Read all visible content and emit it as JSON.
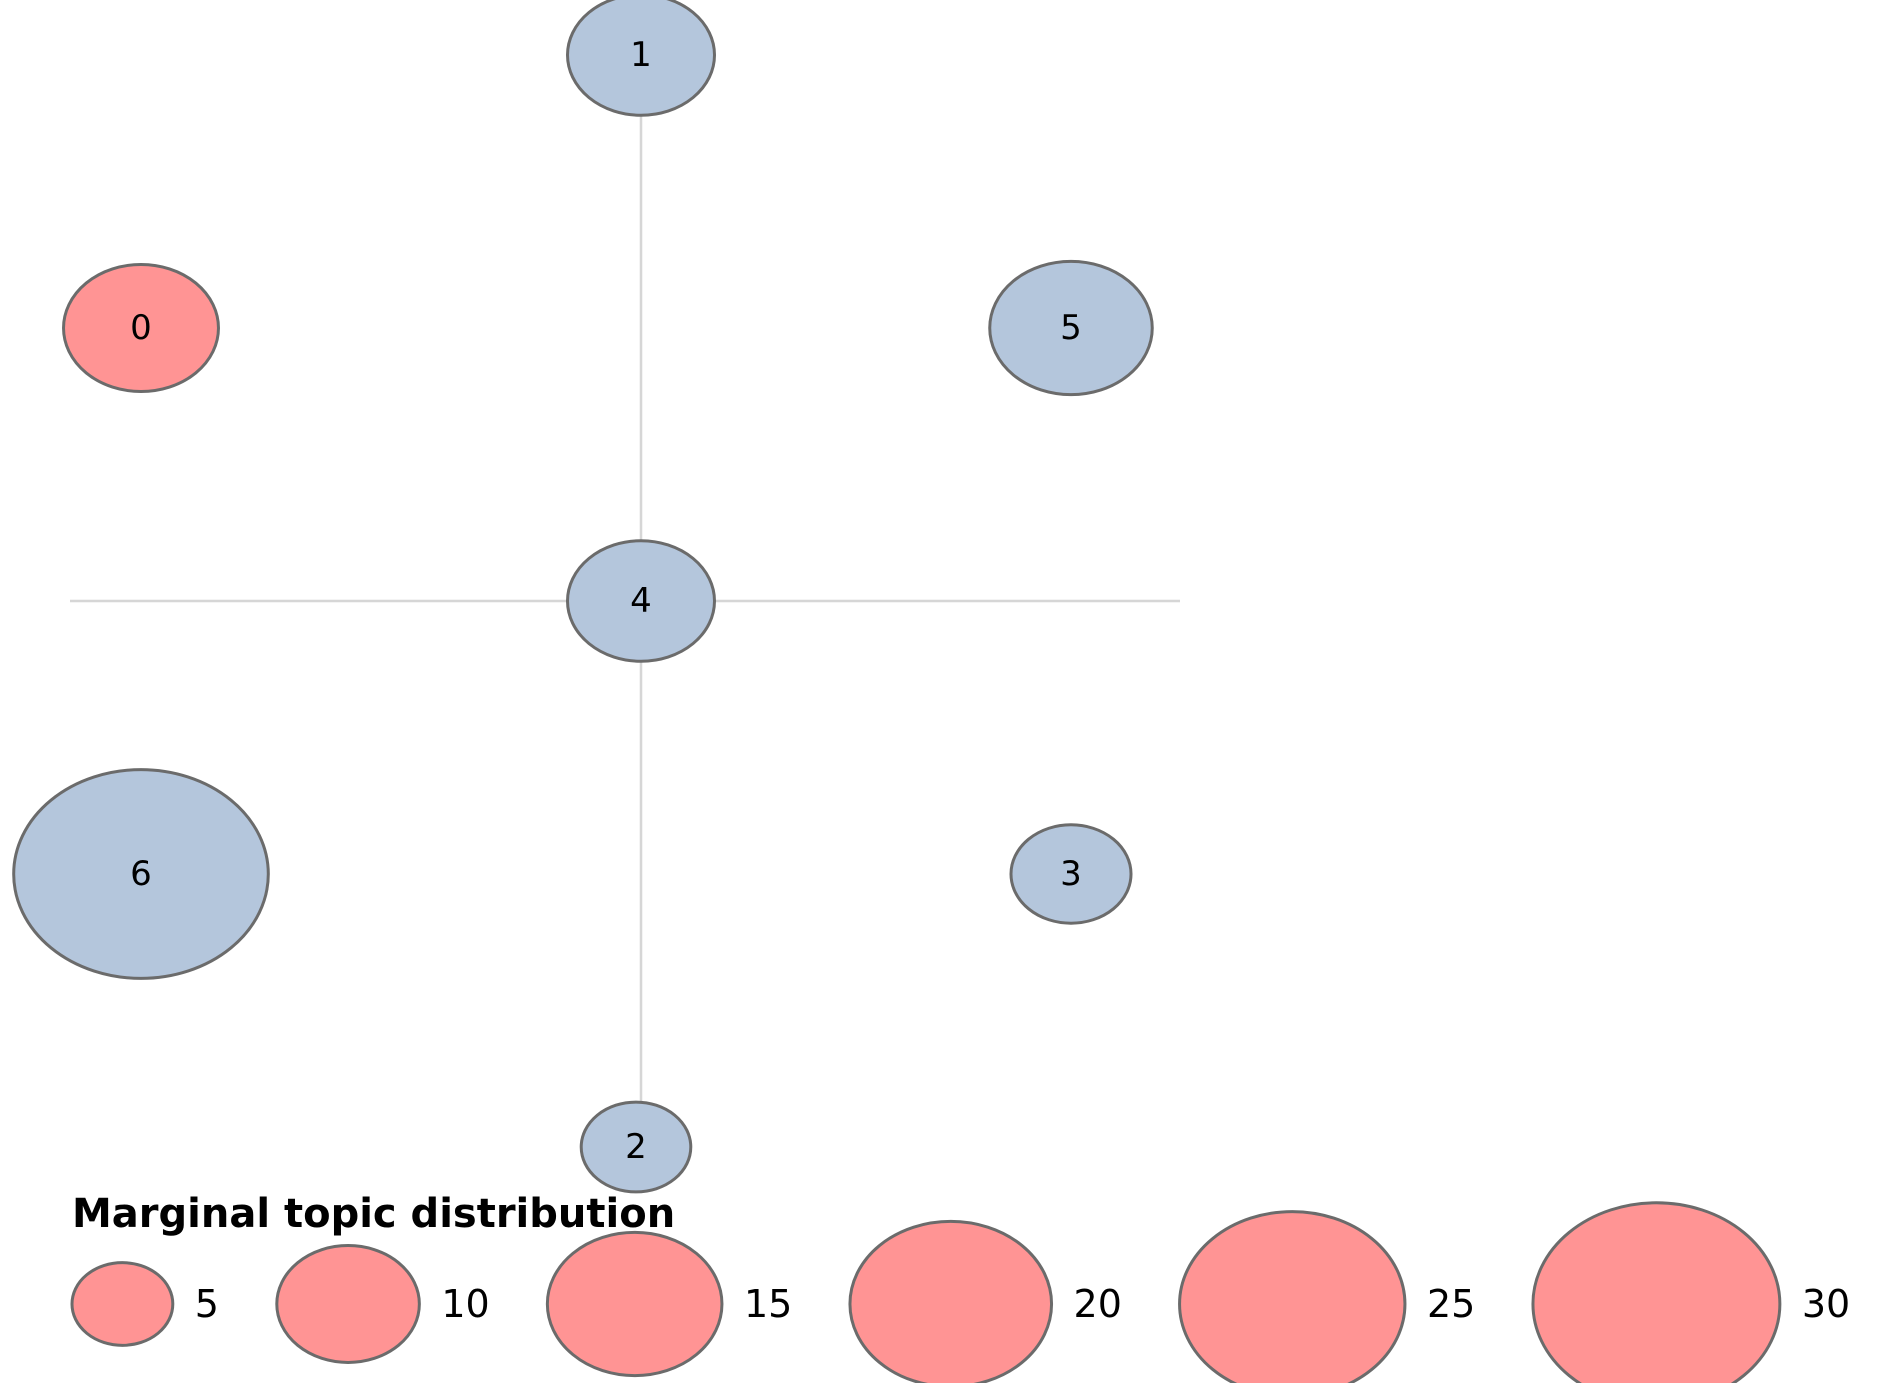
{
  "chart_data": {
    "type": "scatter",
    "title": "",
    "xlabel": "",
    "ylabel": "",
    "grid": false,
    "xlim": [
      -1,
      1
    ],
    "ylim": [
      -1,
      1
    ],
    "topics": [
      {
        "label": "0",
        "x": -1.0,
        "y": 0.5,
        "size": 10,
        "selected": true
      },
      {
        "label": "1",
        "x": 0.0,
        "y": 1.0,
        "size": 9,
        "selected": false
      },
      {
        "label": "2",
        "x": -0.01,
        "y": -1.0,
        "size": 5,
        "selected": false
      },
      {
        "label": "3",
        "x": 0.86,
        "y": -0.5,
        "size": 6,
        "selected": false
      },
      {
        "label": "4",
        "x": 0.0,
        "y": 0.0,
        "size": 9,
        "selected": false
      },
      {
        "label": "5",
        "x": 0.86,
        "y": 0.5,
        "size": 11,
        "selected": false
      },
      {
        "label": "6",
        "x": -1.0,
        "y": -0.5,
        "size": 27,
        "selected": false
      }
    ],
    "legend": {
      "title": "Marginal topic distribution",
      "placement": "bottom-left",
      "values": [
        5,
        10,
        15,
        20,
        25,
        30
      ]
    },
    "colors": {
      "default_fill": "#b4c6dc",
      "selected_fill": "#ff9494",
      "stroke": "#6b6b6b",
      "axis": "#d6d6d6"
    }
  }
}
